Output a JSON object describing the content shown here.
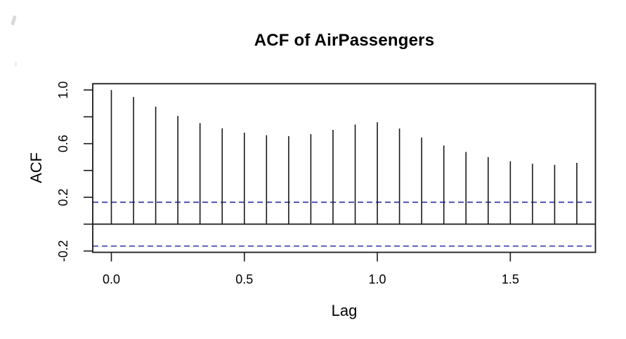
{
  "chart_data": {
    "type": "stem",
    "title": "ACF of AirPassengers",
    "xlabel": "Lag",
    "ylabel": "ACF",
    "x": [
      0.0,
      0.0833,
      0.1667,
      0.25,
      0.3333,
      0.4167,
      0.5,
      0.5833,
      0.6667,
      0.75,
      0.8333,
      0.9167,
      1.0,
      1.0833,
      1.1667,
      1.25,
      1.3333,
      1.4167,
      1.5,
      1.5833,
      1.6667,
      1.75
    ],
    "values": [
      1.0,
      0.948,
      0.876,
      0.807,
      0.753,
      0.714,
      0.682,
      0.663,
      0.656,
      0.671,
      0.703,
      0.743,
      0.76,
      0.713,
      0.646,
      0.586,
      0.538,
      0.5,
      0.469,
      0.45,
      0.442,
      0.457
    ],
    "confidence_bounds": {
      "upper": 0.1633,
      "lower": -0.1633,
      "line_style": "dashed",
      "color": "#4747b2"
    },
    "zero_line": true,
    "grid": false,
    "legend": "none",
    "xlim": [
      -0.07,
      1.82
    ],
    "ylim": [
      -0.2098,
      1.0465
    ],
    "x_ticks": {
      "values": [
        0.0,
        0.5,
        1.0,
        1.5
      ],
      "labels": [
        "0.0",
        "0.5",
        "1.0",
        "1.5"
      ]
    },
    "y_ticks": {
      "values": [
        -0.2,
        0.0,
        0.2,
        0.4,
        0.6,
        0.8,
        1.0
      ],
      "labels": [
        "-0.2",
        "",
        "0.2",
        "",
        "0.6",
        "",
        "1.0"
      ]
    },
    "colors": {
      "line": "#1a1a1a",
      "text": "#000000",
      "background": "#ffffff",
      "ci": "#4747b2"
    }
  }
}
